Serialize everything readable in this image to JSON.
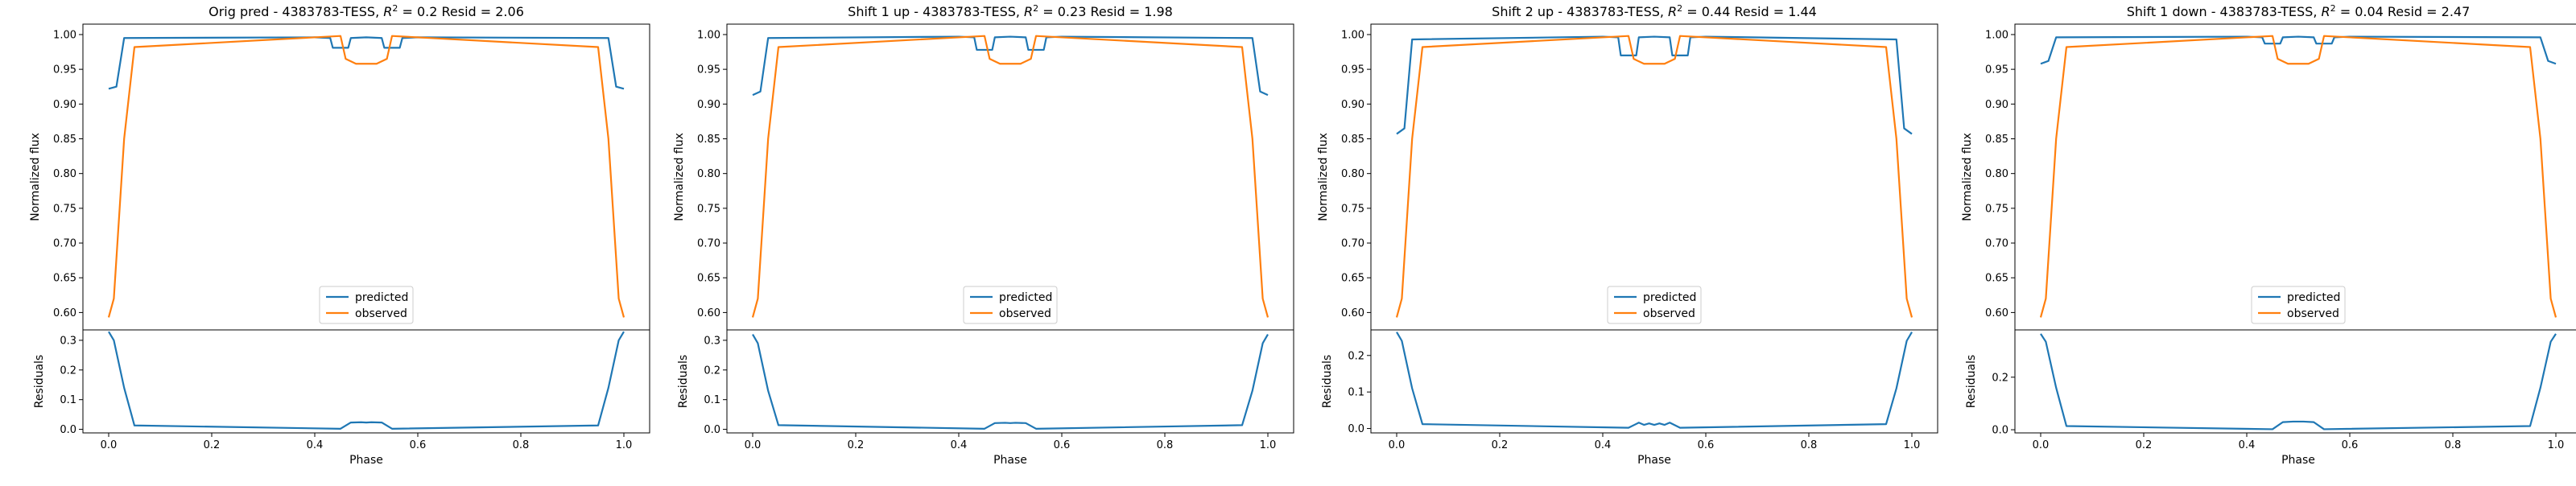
{
  "chart_data": [
    {
      "type": "line",
      "title_main": "Orig pred - 4383783-TESS, ",
      "title_r2_value": "0.2",
      "title_resid": " Resid = 2.06",
      "xlabel": "Phase",
      "ylabel_top": "Normalized flux",
      "ylabel_bottom": "Residuals",
      "xlim": [
        -0.05,
        1.05
      ],
      "ylim_top": [
        0.575,
        1.015
      ],
      "ylim_bottom": [
        -0.012,
        0.335
      ],
      "xticks": [
        "0.0",
        "0.2",
        "0.4",
        "0.6",
        "0.8",
        "1.0"
      ],
      "yticks_top": [
        "0.60",
        "0.65",
        "0.70",
        "0.75",
        "0.80",
        "0.85",
        "0.90",
        "0.95",
        "1.00"
      ],
      "yticks_bottom": [
        "0.0",
        "0.1",
        "0.2",
        "0.3"
      ],
      "legend": [
        "predicted",
        "observed"
      ],
      "legend_loc": "lower center",
      "series": [
        {
          "name": "predicted",
          "color": "#1f77b4",
          "x": [
            0.0,
            0.015,
            0.03,
            0.4,
            0.43,
            0.435,
            0.465,
            0.47,
            0.5,
            0.53,
            0.535,
            0.565,
            0.57,
            0.6,
            0.97,
            0.985,
            1.0
          ],
          "y": [
            0.922,
            0.925,
            0.995,
            0.996,
            0.995,
            0.981,
            0.981,
            0.995,
            0.996,
            0.995,
            0.981,
            0.981,
            0.995,
            0.996,
            0.995,
            0.925,
            0.922
          ]
        },
        {
          "name": "observed",
          "color": "#ff7f0e",
          "x": [
            0.0,
            0.01,
            0.03,
            0.05,
            0.45,
            0.46,
            0.48,
            0.5,
            0.52,
            0.54,
            0.55,
            0.95,
            0.97,
            0.99,
            1.0
          ],
          "y": [
            0.593,
            0.62,
            0.85,
            0.982,
            0.998,
            0.965,
            0.958,
            0.958,
            0.958,
            0.965,
            0.998,
            0.982,
            0.85,
            0.62,
            0.593
          ]
        }
      ],
      "residuals": {
        "color": "#1f77b4",
        "x": [
          0.0,
          0.01,
          0.03,
          0.05,
          0.45,
          0.47,
          0.49,
          0.5,
          0.51,
          0.53,
          0.55,
          0.95,
          0.97,
          0.99,
          1.0
        ],
        "y": [
          0.329,
          0.3,
          0.14,
          0.013,
          0.002,
          0.023,
          0.024,
          0.023,
          0.024,
          0.023,
          0.002,
          0.013,
          0.14,
          0.3,
          0.329
        ]
      }
    },
    {
      "type": "line",
      "title_main": "Shift 1 up - 4383783-TESS, ",
      "title_r2_value": "0.23",
      "title_resid": " Resid = 1.98",
      "xlabel": "Phase",
      "ylabel_top": "Normalized flux",
      "ylabel_bottom": "Residuals",
      "xlim": [
        -0.05,
        1.05
      ],
      "ylim_top": [
        0.575,
        1.015
      ],
      "ylim_bottom": [
        -0.012,
        0.335
      ],
      "xticks": [
        "0.0",
        "0.2",
        "0.4",
        "0.6",
        "0.8",
        "1.0"
      ],
      "yticks_top": [
        "0.60",
        "0.65",
        "0.70",
        "0.75",
        "0.80",
        "0.85",
        "0.90",
        "0.95",
        "1.00"
      ],
      "yticks_bottom": [
        "0.0",
        "0.1",
        "0.2",
        "0.3"
      ],
      "legend": [
        "predicted",
        "observed"
      ],
      "legend_loc": "lower center",
      "series": [
        {
          "name": "predicted",
          "color": "#1f77b4",
          "x": [
            0.0,
            0.015,
            0.03,
            0.4,
            0.43,
            0.435,
            0.465,
            0.47,
            0.5,
            0.53,
            0.535,
            0.565,
            0.57,
            0.6,
            0.97,
            0.985,
            1.0
          ],
          "y": [
            0.913,
            0.918,
            0.995,
            0.997,
            0.996,
            0.978,
            0.978,
            0.996,
            0.997,
            0.996,
            0.978,
            0.978,
            0.996,
            0.997,
            0.995,
            0.918,
            0.913
          ]
        },
        {
          "name": "observed",
          "color": "#ff7f0e",
          "x": [
            0.0,
            0.01,
            0.03,
            0.05,
            0.45,
            0.46,
            0.48,
            0.5,
            0.52,
            0.54,
            0.55,
            0.95,
            0.97,
            0.99,
            1.0
          ],
          "y": [
            0.593,
            0.62,
            0.85,
            0.982,
            0.998,
            0.965,
            0.958,
            0.958,
            0.958,
            0.965,
            0.998,
            0.982,
            0.85,
            0.62,
            0.593
          ]
        }
      ],
      "residuals": {
        "color": "#1f77b4",
        "x": [
          0.0,
          0.01,
          0.03,
          0.05,
          0.45,
          0.47,
          0.49,
          0.5,
          0.51,
          0.53,
          0.55,
          0.95,
          0.97,
          0.99,
          1.0
        ],
        "y": [
          0.32,
          0.29,
          0.13,
          0.014,
          0.002,
          0.021,
          0.022,
          0.021,
          0.022,
          0.021,
          0.002,
          0.014,
          0.13,
          0.29,
          0.32
        ]
      }
    },
    {
      "type": "line",
      "title_main": "Shift 2 up - 4383783-TESS, ",
      "title_r2_value": "0.44",
      "title_resid": " Resid = 1.44",
      "xlabel": "Phase",
      "ylabel_top": "Normalized flux",
      "ylabel_bottom": "Residuals",
      "xlim": [
        -0.05,
        1.05
      ],
      "ylim_top": [
        0.575,
        1.015
      ],
      "ylim_bottom": [
        -0.012,
        0.27
      ],
      "xticks": [
        "0.0",
        "0.2",
        "0.4",
        "0.6",
        "0.8",
        "1.0"
      ],
      "yticks_top": [
        "0.60",
        "0.65",
        "0.70",
        "0.75",
        "0.80",
        "0.85",
        "0.90",
        "0.95",
        "1.00"
      ],
      "yticks_bottom": [
        "0.0",
        "0.1",
        "0.2"
      ],
      "legend": [
        "predicted",
        "observed"
      ],
      "legend_loc": "lower center",
      "series": [
        {
          "name": "predicted",
          "color": "#1f77b4",
          "x": [
            0.0,
            0.015,
            0.03,
            0.4,
            0.43,
            0.435,
            0.465,
            0.47,
            0.5,
            0.53,
            0.535,
            0.565,
            0.57,
            0.6,
            0.97,
            0.985,
            1.0
          ],
          "y": [
            0.857,
            0.865,
            0.993,
            0.997,
            0.996,
            0.97,
            0.97,
            0.996,
            0.997,
            0.996,
            0.97,
            0.97,
            0.996,
            0.997,
            0.993,
            0.865,
            0.857
          ]
        },
        {
          "name": "observed",
          "color": "#ff7f0e",
          "x": [
            0.0,
            0.01,
            0.03,
            0.05,
            0.45,
            0.46,
            0.48,
            0.5,
            0.52,
            0.54,
            0.55,
            0.95,
            0.97,
            0.99,
            1.0
          ],
          "y": [
            0.593,
            0.62,
            0.85,
            0.982,
            0.998,
            0.965,
            0.958,
            0.958,
            0.958,
            0.965,
            0.998,
            0.982,
            0.85,
            0.62,
            0.593
          ]
        }
      ],
      "residuals": {
        "color": "#1f77b4",
        "x": [
          0.0,
          0.01,
          0.03,
          0.05,
          0.45,
          0.47,
          0.48,
          0.49,
          0.5,
          0.51,
          0.52,
          0.53,
          0.55,
          0.95,
          0.97,
          0.99,
          1.0
        ],
        "y": [
          0.264,
          0.24,
          0.11,
          0.012,
          0.002,
          0.016,
          0.01,
          0.014,
          0.01,
          0.014,
          0.01,
          0.016,
          0.002,
          0.012,
          0.11,
          0.24,
          0.264
        ]
      }
    },
    {
      "type": "line",
      "title_main": "Shift 1 down - 4383783-TESS, ",
      "title_r2_value": "0.04",
      "title_resid": " Resid = 2.47",
      "xlabel": "Phase",
      "ylabel_top": "Normalized flux",
      "ylabel_bottom": "Residuals",
      "xlim": [
        -0.05,
        1.05
      ],
      "ylim_top": [
        0.575,
        1.015
      ],
      "ylim_bottom": [
        -0.012,
        0.38
      ],
      "xticks": [
        "0.0",
        "0.2",
        "0.4",
        "0.6",
        "0.8",
        "1.0"
      ],
      "yticks_top": [
        "0.60",
        "0.65",
        "0.70",
        "0.75",
        "0.80",
        "0.85",
        "0.90",
        "0.95",
        "1.00"
      ],
      "yticks_bottom": [
        "0.0",
        "0.2"
      ],
      "legend": [
        "predicted",
        "observed"
      ],
      "legend_loc": "lower center",
      "series": [
        {
          "name": "predicted",
          "color": "#1f77b4",
          "x": [
            0.0,
            0.015,
            0.03,
            0.4,
            0.43,
            0.435,
            0.465,
            0.47,
            0.5,
            0.53,
            0.535,
            0.565,
            0.57,
            0.6,
            0.97,
            0.985,
            1.0
          ],
          "y": [
            0.958,
            0.962,
            0.996,
            0.997,
            0.996,
            0.987,
            0.987,
            0.996,
            0.997,
            0.996,
            0.987,
            0.987,
            0.996,
            0.997,
            0.996,
            0.962,
            0.958
          ]
        },
        {
          "name": "observed",
          "color": "#ff7f0e",
          "x": [
            0.0,
            0.01,
            0.03,
            0.05,
            0.45,
            0.46,
            0.48,
            0.5,
            0.52,
            0.54,
            0.55,
            0.95,
            0.97,
            0.99,
            1.0
          ],
          "y": [
            0.593,
            0.62,
            0.85,
            0.982,
            0.998,
            0.965,
            0.958,
            0.958,
            0.958,
            0.965,
            0.998,
            0.982,
            0.85,
            0.62,
            0.593
          ]
        }
      ],
      "residuals": {
        "color": "#1f77b4",
        "x": [
          0.0,
          0.01,
          0.03,
          0.05,
          0.45,
          0.47,
          0.49,
          0.5,
          0.51,
          0.53,
          0.55,
          0.95,
          0.97,
          0.99,
          1.0
        ],
        "y": [
          0.365,
          0.335,
          0.16,
          0.014,
          0.002,
          0.029,
          0.031,
          0.031,
          0.031,
          0.029,
          0.002,
          0.014,
          0.16,
          0.335,
          0.365
        ]
      }
    }
  ]
}
